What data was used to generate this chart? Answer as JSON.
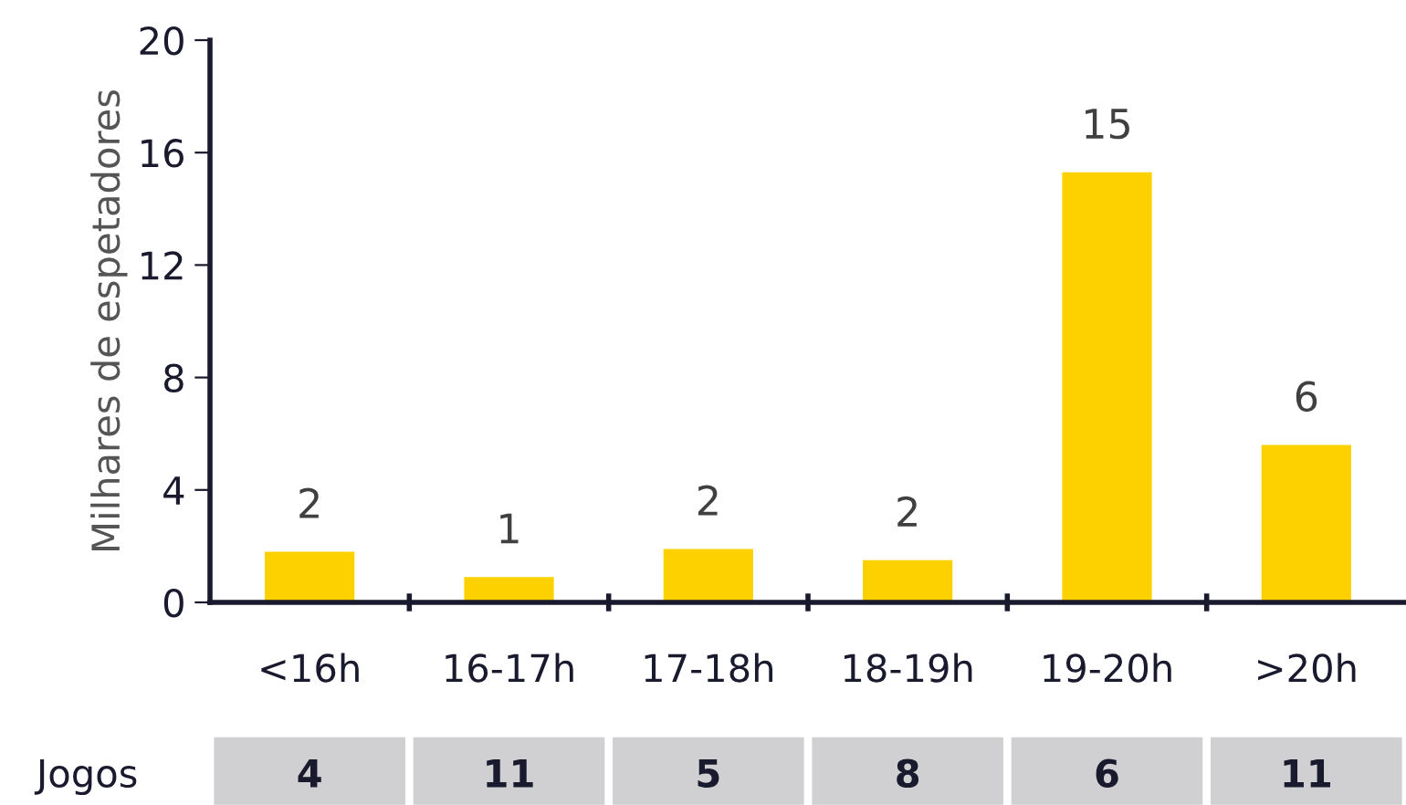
{
  "chart_data": {
    "type": "bar",
    "ylabel": "Milhares de espetadores",
    "categories": [
      "<16h",
      "16-17h",
      "17-18h",
      "18-19h",
      "19-20h",
      ">20h"
    ],
    "values": [
      1.8,
      0.9,
      1.9,
      1.5,
      15.3,
      5.6
    ],
    "value_labels": [
      "2",
      "1",
      "2",
      "2",
      "15",
      "6"
    ],
    "color": "#fdd100",
    "ylim": [
      0,
      20
    ],
    "yticks": [
      0,
      4,
      8,
      12,
      16,
      20
    ],
    "grid": false,
    "legend": false,
    "annotations": [
      "Jogos",
      "4",
      "11",
      "5",
      "8",
      "6",
      "11"
    ]
  }
}
